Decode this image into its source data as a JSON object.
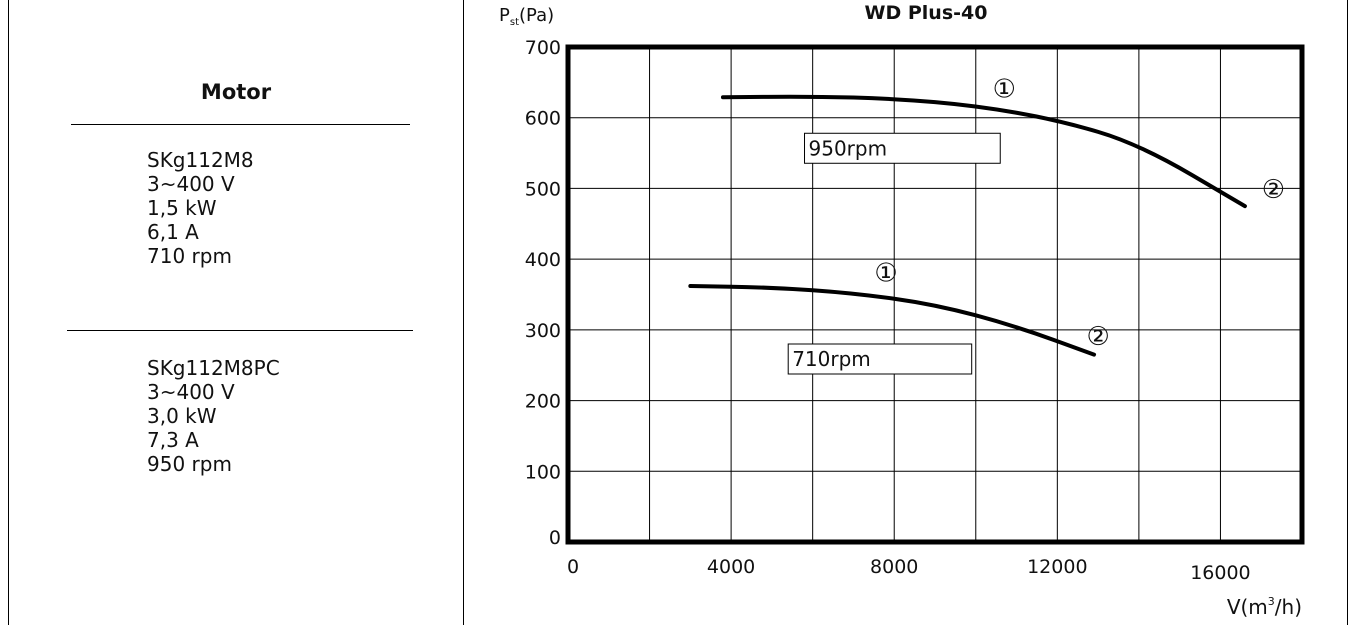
{
  "motor_panel": {
    "title": "Motor",
    "motor_1": [
      "SKg112M8",
      "3~400 V",
      "1,5 kW",
      "6,1 A",
      "710 rpm"
    ],
    "motor_2": [
      "SKg112M8PC",
      "3~400 V",
      "3,0 kW",
      "7,3 A",
      "950 rpm"
    ]
  },
  "chart_data": {
    "type": "line",
    "title": "WD Plus-40",
    "ylabel_main": "P",
    "ylabel_sub": "st",
    "ylabel_unit": "(Pa)",
    "xlabel_main": "V(m",
    "xlabel_sup": "3",
    "xlabel_unit": "/h)",
    "xlim": [
      0,
      18000
    ],
    "ylim": [
      0,
      700
    ],
    "x_ticks": [
      0,
      4000,
      8000,
      12000,
      16000
    ],
    "y_ticks": [
      0,
      100,
      200,
      300,
      400,
      500,
      600,
      700
    ],
    "grid": true,
    "series": [
      {
        "name": "950rpm",
        "x": [
          3800,
          6000,
          8000,
          10000,
          12000,
          14000,
          16600
        ],
        "y": [
          629,
          630,
          627,
          617,
          597,
          563,
          475
        ],
        "markers": [
          {
            "label": "①",
            "x": 10700,
            "y": 641
          },
          {
            "label": "②",
            "x": 17300,
            "y": 499
          }
        ]
      },
      {
        "name": "710rpm",
        "x": [
          3000,
          5000,
          7000,
          9000,
          11000,
          12900
        ],
        "y": [
          362,
          360,
          352,
          336,
          305,
          265
        ],
        "markers": [
          {
            "label": "①",
            "x": 7800,
            "y": 381
          },
          {
            "label": "②",
            "x": 13000,
            "y": 291
          }
        ]
      }
    ]
  }
}
